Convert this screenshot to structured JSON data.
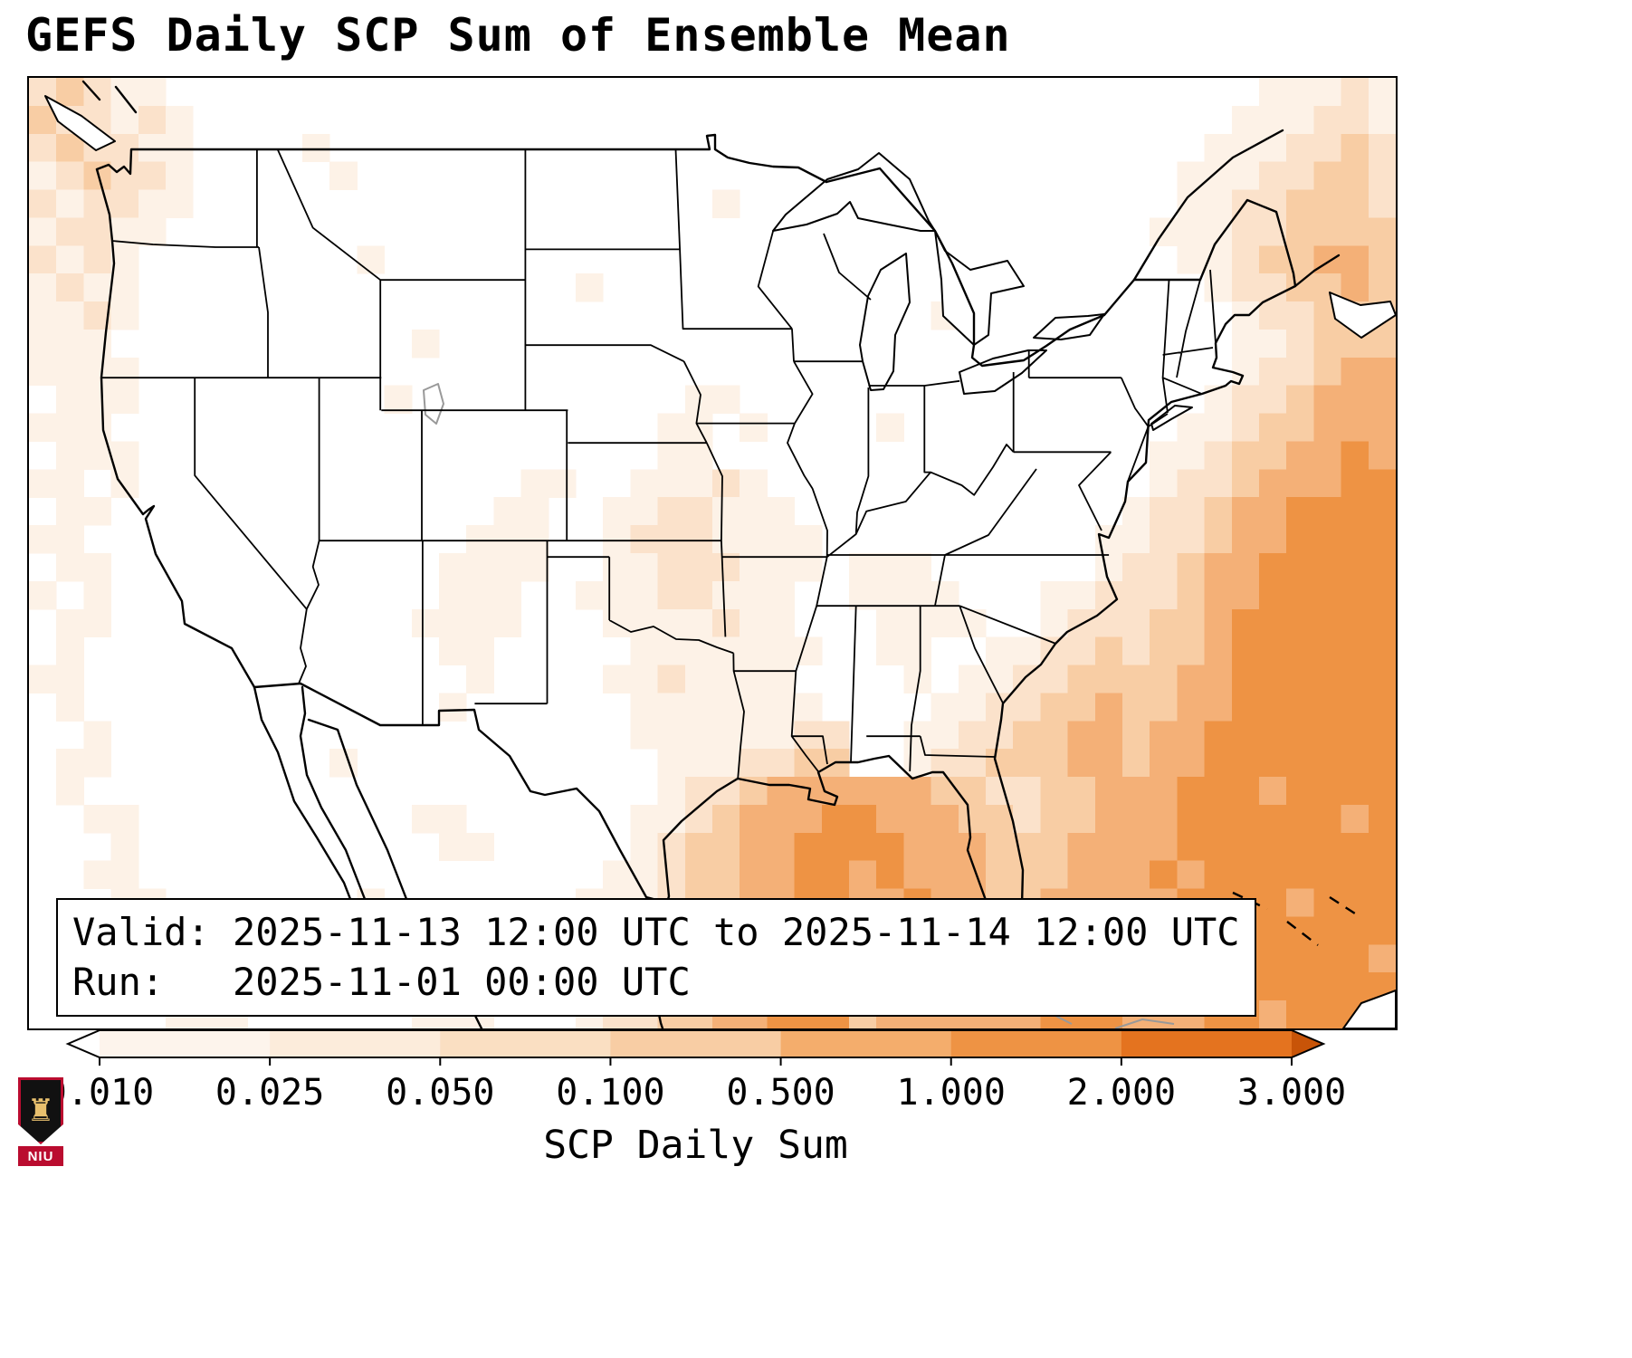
{
  "chart_data": {
    "type": "heatmap",
    "title": "GEFS Daily SCP Sum of Ensemble Mean",
    "colorbar_label": "SCP Daily Sum",
    "colorbar_ticks": [
      "0.010",
      "0.025",
      "0.050",
      "0.100",
      "0.500",
      "1.000",
      "2.000",
      "3.000"
    ],
    "valid_line": "Valid: 2025-11-13 12:00 UTC to 2025-11-14 12:00 UTC",
    "run_line": "Run:   2025-11-01 00:00 UTC",
    "legend_position": "bottom",
    "region": "Contiguous United States and adjacent oceans",
    "colorbar_segment_colors": [
      "#fdf4ec",
      "#fcecdb",
      "#fadfc2",
      "#f8cda4",
      "#f4ad6c",
      "#ee9344",
      "#e4731f"
    ],
    "colorbar_under_color": "#ffffff",
    "colorbar_over_color": "#c85408",
    "heatmap": {
      "palette": [
        "none",
        "#fdf2e7",
        "#fbe2cb",
        "#f8cda4",
        "#f4b077",
        "#ee9344",
        "#e4731f"
      ],
      "cols": 50,
      "rows": 34,
      "grid": [
        "23211000000000000000000000000000000000000000011121",
        "32212100000000000000000000000000000000000000111221",
        "23221100001000000000000000000000000000000001112232",
        "12322100000100000000000000000000000000000011122332",
        "21221100000000000000000001000000000000000011223332",
        "12211000000000000000000000000000000000000111223333",
        "21210000000010000000000000000000000000000011233443",
        "12110000000000000000100000000000000000000001223343",
        "11210000000000000000000000000000010000000000122333",
        "11100000000000100000000000000000000000000000112333",
        "11110000000000000000000000000000000000000000122344",
        "01110000000001000000000011000000000000000001223444",
        "11100000000000000000000110100001000000000011233444",
        "01110000000000000000000110000000000000000112334454",
        "11010000000000000011001112100000000000000122344455",
        "01100000000000000110011221110000000000001223445555",
        "11000000000000001110012221111000000000011223445555",
        "01100000000000011110011222111011100000012234455555",
        "10100000000000011100111221110011110001122234455555",
        "01100000000000111100011112110001111001222334555555",
        "01000000000000011000001111111001100112232334555555",
        "11000000000000001000011211110000101122333344555555",
        "01000000000000010000001111111000011223343344555555",
        "00100000000000000000001111112200112233443445555555",
        "01100000000100000000000111223300122333443445555555",
        "01000000000000000000000122344444433223344455545555",
        "00110000000000110000001123444554443323344455555545",
        "00010000000000011000001233445555444333444455555555",
        "00110000000000000000011233445545444333444545555555",
        "00011000000010000000111233445544544334444455554555",
        "00001100000000000000112233445544443334444455555555",
        "00001100000001100000012233445544444344454455555554",
        "00000110000000000000122334445534444444554445555555",
        "00000111000000111000122334455534444445554445545555"
      ]
    }
  },
  "logo": {
    "text": "NIU"
  }
}
